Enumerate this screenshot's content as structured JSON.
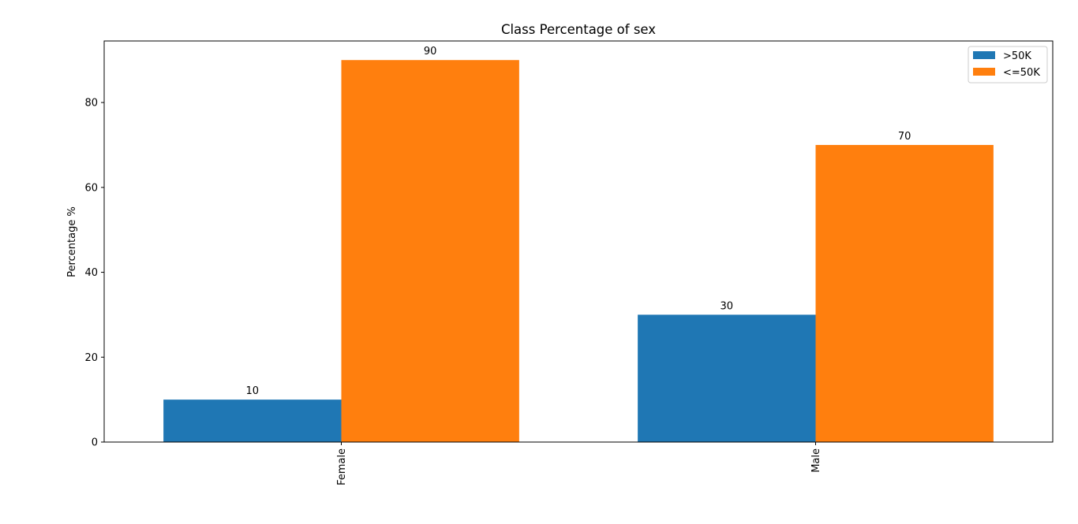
{
  "chart_data": {
    "type": "bar",
    "title": "Class Percentage of sex",
    "xlabel": "",
    "ylabel": "Percentage %",
    "categories": [
      "Female",
      "Male"
    ],
    "series": [
      {
        "name": ">50K",
        "values": [
          10,
          30
        ],
        "color": "#1f77b4"
      },
      {
        "name": "<=50K",
        "values": [
          90,
          70
        ],
        "color": "#ff7f0e"
      }
    ],
    "ylim": [
      0,
      94.5
    ],
    "yticks": [
      0,
      20,
      40,
      60,
      80
    ],
    "legend_position": "top-right",
    "grid": false
  }
}
